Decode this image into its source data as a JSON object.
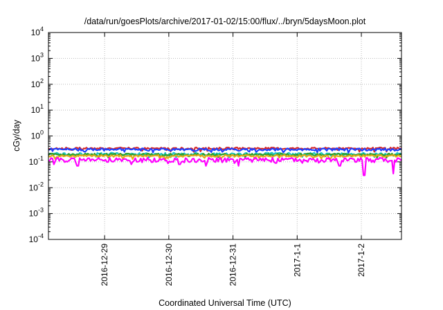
{
  "chart_data": {
    "type": "line",
    "title": "/data/run/goesPlots/archive/2017-01-02/15:00/flux/../bryn/5daysMoon.plot",
    "xlabel": "Coordinated Universal Time (UTC)",
    "ylabel": "cGy/day",
    "yscale": "log",
    "ylim": [
      0.0001,
      10000
    ],
    "y_ticks": [
      {
        "base": "10",
        "exp": "4"
      },
      {
        "base": "10",
        "exp": "3"
      },
      {
        "base": "10",
        "exp": "2"
      },
      {
        "base": "10",
        "exp": "1"
      },
      {
        "base": "10",
        "exp": "0"
      },
      {
        "base": "10",
        "exp": "-1"
      },
      {
        "base": "10",
        "exp": "-2"
      },
      {
        "base": "10",
        "exp": "-3"
      },
      {
        "base": "10",
        "exp": "-4"
      }
    ],
    "x_ticks": [
      "2016-12-29",
      "2016-12-30",
      "2016-12-31",
      "2017-1-1",
      "2017-1-2"
    ],
    "xlim": [
      "2016-12-28 03:00",
      "2017-01-02 15:00"
    ],
    "grid": true,
    "series": [
      {
        "color": "#d62728",
        "baseline": 0.33,
        "noise": 0.06,
        "dips": []
      },
      {
        "color": "#1f3fff",
        "baseline": 0.3,
        "noise": 0.07,
        "dips": []
      },
      {
        "color": "#17c3c3",
        "baseline": 0.2,
        "noise": 0.05,
        "dips": []
      },
      {
        "color": "#2ca02c",
        "baseline": 0.19,
        "noise": 0.04,
        "dips": []
      },
      {
        "color": "#e6a91a",
        "baseline": 0.17,
        "noise": 0.03,
        "dips": []
      },
      {
        "color": "#ff00ff",
        "baseline": 0.12,
        "noise": 0.05,
        "dips": [
          [
            "2016-12-28 05:00",
            0.08
          ],
          [
            "2016-12-28 14:00",
            0.07
          ],
          [
            "2016-12-29 10:00",
            0.08
          ],
          [
            "2016-12-30 04:00",
            0.08
          ],
          [
            "2016-12-30 14:00",
            0.07
          ],
          [
            "2016-12-31 02:00",
            0.07
          ],
          [
            "2016-12-31 16:00",
            0.09
          ],
          [
            "2017-01-01 02:00",
            0.09
          ],
          [
            "2017-01-01 16:00",
            0.07
          ],
          [
            "2017-01-02 01:00",
            0.03
          ],
          [
            "2017-01-02 12:00",
            0.035
          ]
        ]
      }
    ]
  }
}
